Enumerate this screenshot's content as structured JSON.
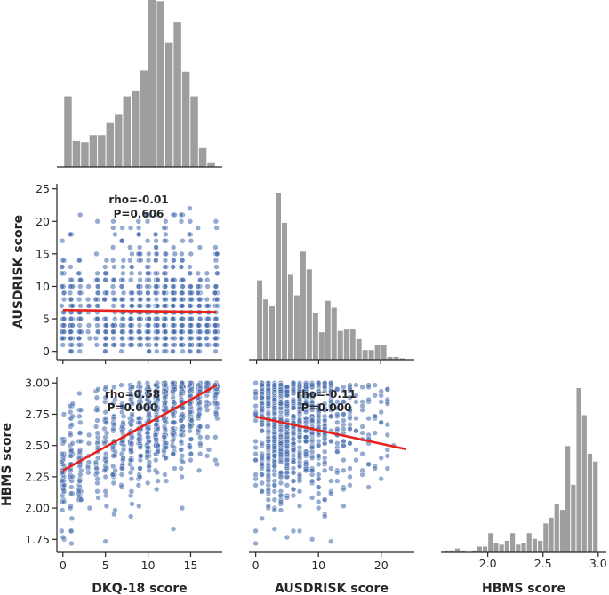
{
  "chart_data": {
    "type": "pairplot",
    "colors": {
      "hist": "#9e9e9e",
      "point": "#4c72b0",
      "fit": "#e8221b",
      "axis": "#262626"
    },
    "variables": [
      "DKQ-18 score",
      "AUSDRISK score",
      "HBMS score"
    ],
    "x_labels": [
      "DKQ-18 score",
      "AUSDRISK score",
      "HBMS score"
    ],
    "y_labels": [
      "",
      "AUSDRISK score",
      "HBMS score"
    ],
    "histograms": [
      {
        "variable": "DKQ-18 score",
        "bins": [
          0,
          1,
          2,
          3,
          4,
          5,
          6,
          7,
          8,
          9,
          10,
          11,
          12,
          13,
          14,
          15,
          16,
          17,
          18
        ],
        "counts": [
          60,
          22,
          21,
          27,
          27,
          38,
          45,
          60,
          65,
          82,
          142,
          141,
          106,
          123,
          81,
          60,
          16,
          4
        ]
      },
      {
        "variable": "AUSDRISK score",
        "bins": [
          0,
          1,
          2,
          3,
          4,
          5,
          6,
          7,
          8,
          9,
          10,
          11,
          12,
          13,
          14,
          15,
          16,
          17,
          18,
          19,
          20,
          21,
          22,
          23,
          24
        ],
        "counts": [
          58,
          44,
          39,
          122,
          100,
          62,
          47,
          79,
          66,
          34,
          20,
          43,
          38,
          21,
          22,
          22,
          15,
          7,
          7,
          11,
          11,
          2,
          2,
          1
        ],
        "xlim": [
          0,
          24.5
        ]
      },
      {
        "variable": "HBMS score",
        "bins": [
          1.6,
          1.65,
          1.7,
          1.75,
          1.8,
          1.85,
          1.9,
          1.95,
          2.0,
          2.05,
          2.1,
          2.15,
          2.2,
          2.25,
          2.3,
          2.35,
          2.4,
          2.45,
          2.5,
          2.55,
          2.6,
          2.65,
          2.7,
          2.75,
          2.8,
          2.85,
          2.9,
          2.95,
          3.0
        ],
        "counts": [
          1,
          1,
          2,
          1,
          0,
          1,
          3,
          3,
          10,
          5,
          4,
          6,
          10,
          4,
          5,
          10,
          7,
          6,
          15,
          18,
          25,
          22,
          55,
          35,
          85,
          71,
          51,
          47,
          29
        ],
        "xlim": [
          1.6,
          3.05
        ],
        "ticks": [
          "2.0",
          "2.5",
          "3.0"
        ]
      }
    ],
    "scatter_panels": [
      {
        "x": "DKQ-18 score",
        "y": "AUSDRISK score",
        "xlim": [
          -0.5,
          18.5
        ],
        "ylim": [
          -1,
          25.5
        ],
        "yticks": [
          "0",
          "5",
          "10",
          "15",
          "20",
          "25"
        ],
        "fit": {
          "x0": 0,
          "y0": 6.35,
          "x1": 18,
          "y1": 6.05
        },
        "annotation": {
          "rho": "rho=-0.01",
          "p": "P=0.606"
        }
      },
      {
        "x": "DKQ-18 score",
        "y": "HBMS score",
        "xlim": [
          -0.5,
          18.5
        ],
        "ylim": [
          1.66,
          3.03
        ],
        "xticks": [
          "0",
          "5",
          "10",
          "15"
        ],
        "yticks": [
          "1.75",
          "2.00",
          "2.25",
          "2.50",
          "2.75",
          "3.00"
        ],
        "fit": {
          "x0": 0,
          "y0": 2.3,
          "x1": 18,
          "y1": 2.98
        },
        "annotation": {
          "rho": "rho=0.58",
          "p": "P=0.000"
        }
      },
      {
        "x": "AUSDRISK score",
        "y": "HBMS score",
        "xlim": [
          -0.8,
          25
        ],
        "ylim": [
          1.66,
          3.03
        ],
        "xticks": [
          "0",
          "10",
          "20"
        ],
        "fit": {
          "x0": 0,
          "y0": 2.73,
          "x1": 24,
          "y1": 2.47
        },
        "annotation": {
          "rho": "rho=-0.11",
          "p": "P=0.000"
        }
      }
    ]
  }
}
